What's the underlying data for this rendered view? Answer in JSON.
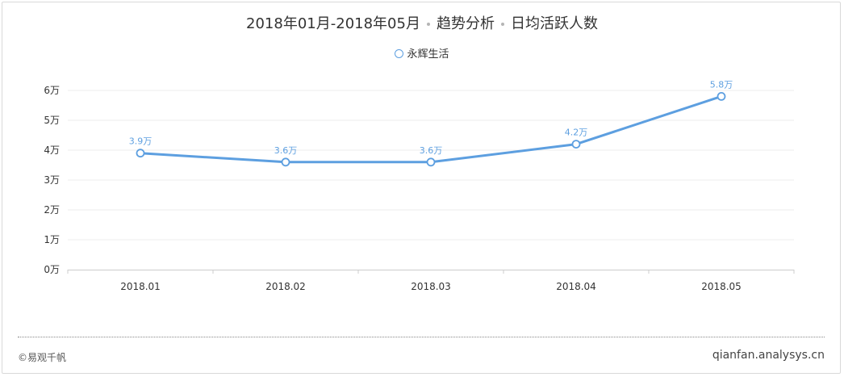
{
  "header": {
    "period": "2018年01月-2018年05月",
    "analysis": "趋势分析",
    "metric": "日均活跃人数"
  },
  "chart_data": {
    "type": "line",
    "categories": [
      "2018.01",
      "2018.02",
      "2018.03",
      "2018.04",
      "2018.05"
    ],
    "series": [
      {
        "name": "永辉生活",
        "values": [
          3.9,
          3.6,
          3.6,
          4.2,
          5.8
        ],
        "labels": [
          "3.9万",
          "3.6万",
          "3.6万",
          "4.2万",
          "5.8万"
        ],
        "color": "#5d9fe0"
      }
    ],
    "y_ticks": [
      "0万",
      "1万",
      "2万",
      "3万",
      "4万",
      "5万",
      "6万"
    ],
    "ylim": [
      0,
      6
    ],
    "legend_position": "top-center",
    "grid": true
  },
  "footer": {
    "copyright": "©易观千帆",
    "site": "qianfan.analysys.cn"
  }
}
